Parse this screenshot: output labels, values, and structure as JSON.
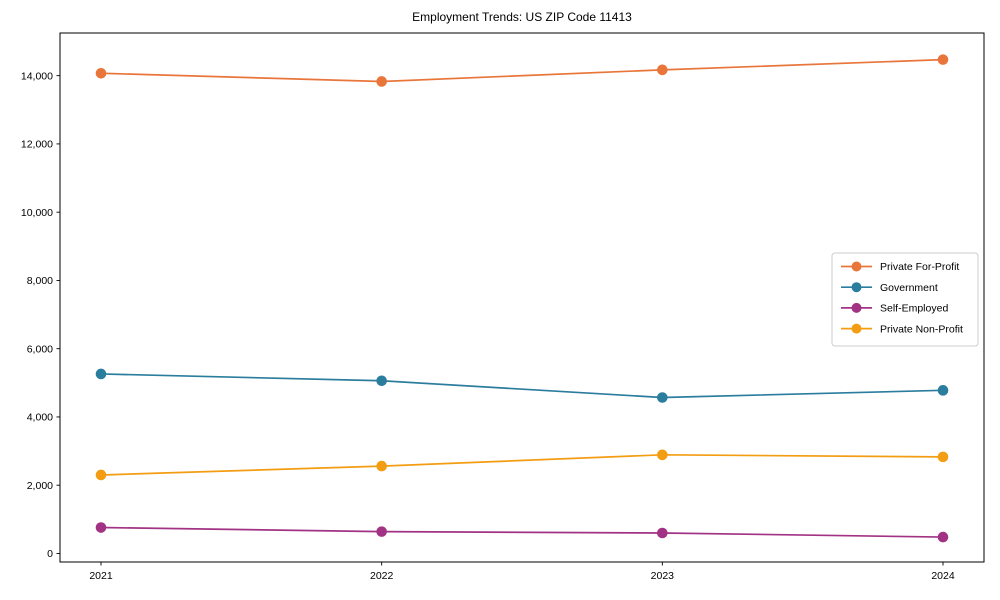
{
  "figure": {
    "title": "Employment Trends: US ZIP Code 11413"
  },
  "chart_data": {
    "type": "line",
    "title": "Employment Trends: US ZIP Code 11413",
    "x": [
      2021,
      2022,
      2023,
      2024
    ],
    "xtick_labels": [
      "2021",
      "2022",
      "2023",
      "2024"
    ],
    "yticks": [
      0,
      2000,
      4000,
      6000,
      8000,
      10000,
      12000,
      14000
    ],
    "ytick_labels": [
      "0",
      "2,000",
      "4,000",
      "6,000",
      "8,000",
      "10,000",
      "12,000",
      "14,000"
    ],
    "ylim": [
      -250,
      15250
    ],
    "xlabel": "",
    "ylabel": "",
    "grid": false,
    "legend_position": "center right",
    "marker": "circle",
    "axis_color": "#000000",
    "legend_border_color": "#cccccc",
    "series": [
      {
        "name": "Private For-Profit",
        "color": "#e8763b",
        "values": [
          14070,
          13830,
          14170,
          14470
        ]
      },
      {
        "name": "Government",
        "color": "#2b7d9e",
        "values": [
          5260,
          5060,
          4570,
          4780
        ]
      },
      {
        "name": "Self-Employed",
        "color": "#a23384",
        "values": [
          760,
          640,
          600,
          480
        ]
      },
      {
        "name": "Private Non-Profit",
        "color": "#f39d12",
        "values": [
          2300,
          2560,
          2890,
          2830
        ]
      }
    ]
  }
}
